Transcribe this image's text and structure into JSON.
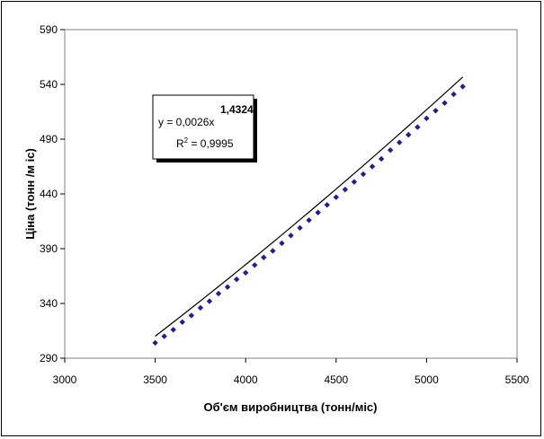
{
  "chart_data": {
    "type": "scatter",
    "xlabel": "Об'єм виробництва (тонн/міс)",
    "ylabel": "Ціна  (тонн  /м іс)",
    "xlim": [
      3000,
      5500
    ],
    "ylim": [
      290,
      590
    ],
    "x_ticks": [
      "3000",
      "3500",
      "4000",
      "4500",
      "5000",
      "5500"
    ],
    "y_ticks": [
      "290",
      "340",
      "390",
      "440",
      "490",
      "540",
      "590"
    ],
    "grid": false,
    "marker_color": "#1f1f8f",
    "line_color": "#000000",
    "series": [
      {
        "x": [
          3500,
          3550,
          3600,
          3650,
          3700,
          3750,
          3800,
          3850,
          3900,
          3950,
          4000,
          4050,
          4100,
          4150,
          4200,
          4250,
          4300,
          4350,
          4400,
          4450,
          4500,
          4550,
          4600,
          4650,
          4700,
          4750,
          4800,
          4850,
          4900,
          4950,
          5000,
          5050,
          5100,
          5150,
          5200
        ],
        "y": [
          304,
          310,
          316,
          323,
          329,
          336,
          342,
          349,
          355,
          362,
          368,
          375,
          382,
          388,
          395,
          402,
          409,
          416,
          423,
          430,
          437,
          444,
          451,
          458,
          465,
          472,
          480,
          487,
          494,
          501,
          509,
          516,
          523,
          531,
          538
        ]
      }
    ],
    "trendline": {
      "type": "power",
      "coef": 0.0026,
      "exponent": 1.4324,
      "equation_prefix": "y = 0,0026x",
      "equation_exponent": "1,4324",
      "r2_prefix": "R",
      "r2_sup": "2",
      "r2_suffix": " = 0,9995"
    }
  }
}
